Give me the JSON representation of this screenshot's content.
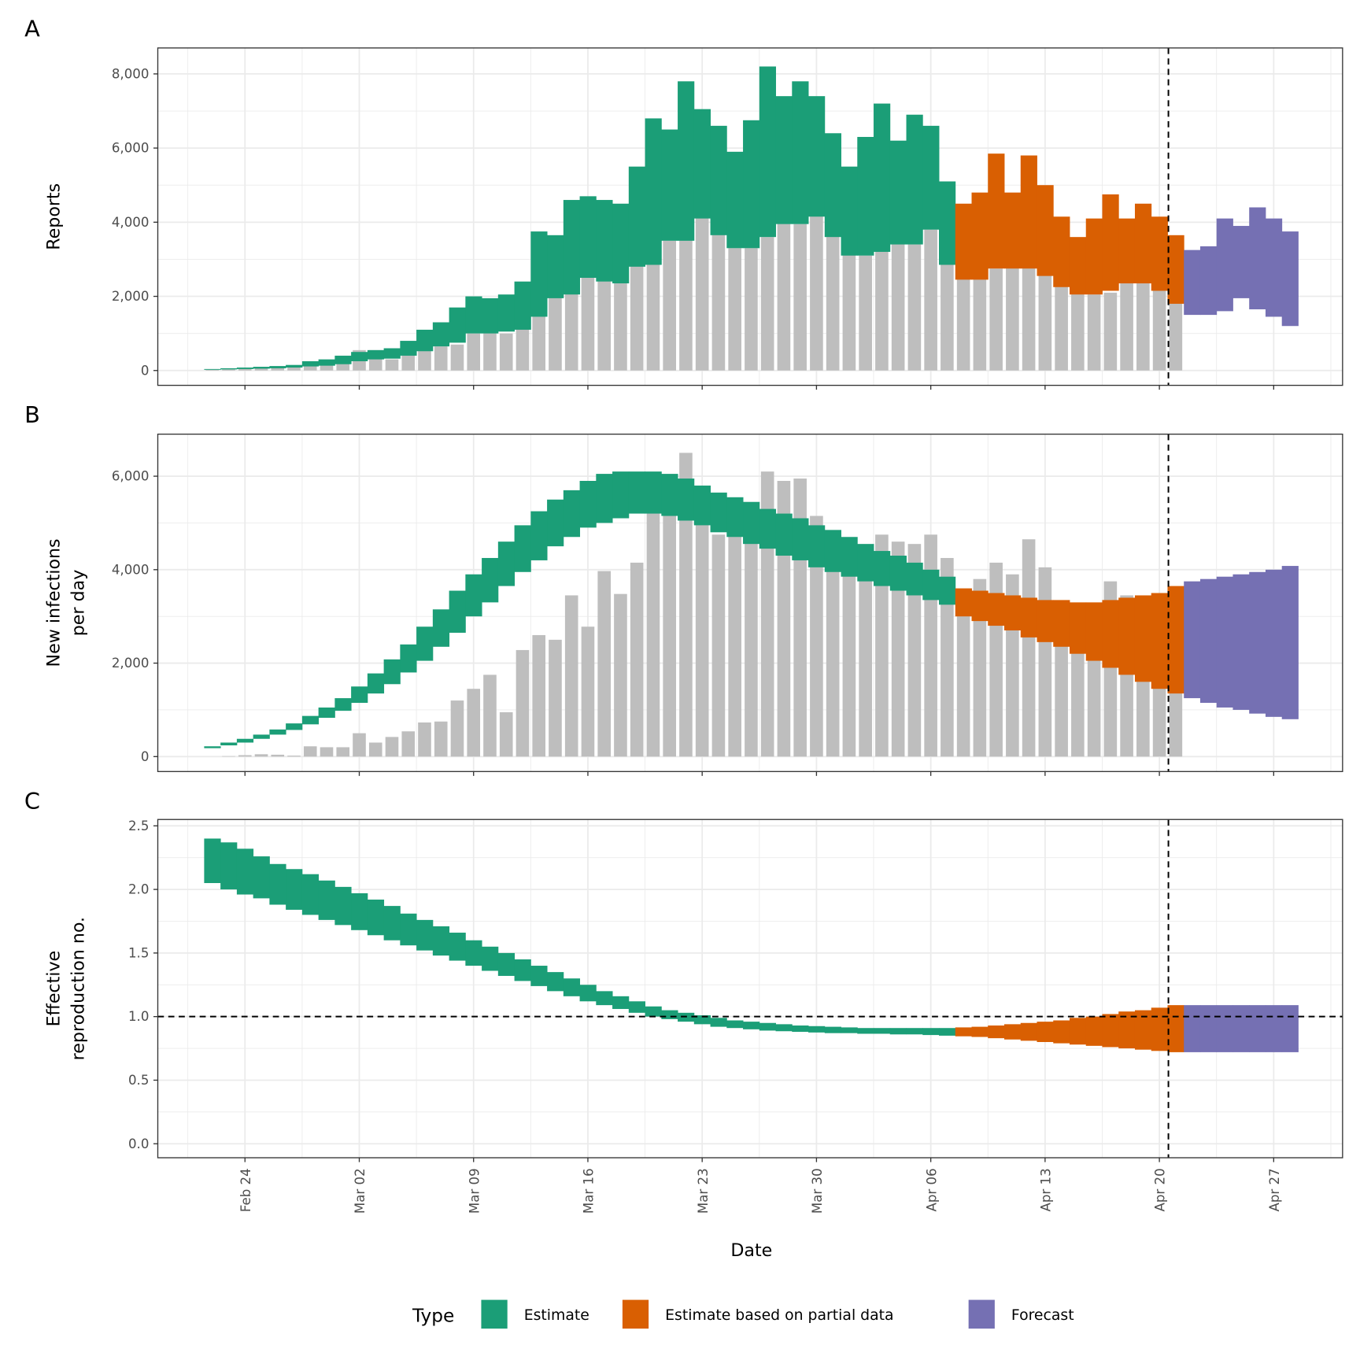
{
  "colors": {
    "Estimate": "#1b9e77",
    "Estimate based on partial data": "#d95f02",
    "Forecast": "#7570b3",
    "reported": "#bebebe",
    "grid": "#ebebeb"
  },
  "x_axis": {
    "label": "Date",
    "ticks": [
      "Feb 24",
      "Mar 02",
      "Mar 09",
      "Mar 16",
      "Mar 23",
      "Mar 30",
      "Apr 06",
      "Apr 13",
      "Apr 20",
      "Apr 27"
    ]
  },
  "legend": {
    "title": "Type",
    "position": "bottom",
    "entries": [
      "Estimate",
      "Estimate based on partial data",
      "Forecast"
    ]
  },
  "chart_data": {
    "type": "bar+ribbon",
    "dates": [
      "Feb 22",
      "Feb 23",
      "Feb 24",
      "Feb 25",
      "Feb 26",
      "Feb 27",
      "Feb 28",
      "Feb 29",
      "Mar 01",
      "Mar 02",
      "Mar 03",
      "Mar 04",
      "Mar 05",
      "Mar 06",
      "Mar 07",
      "Mar 08",
      "Mar 09",
      "Mar 10",
      "Mar 11",
      "Mar 12",
      "Mar 13",
      "Mar 14",
      "Mar 15",
      "Mar 16",
      "Mar 17",
      "Mar 18",
      "Mar 19",
      "Mar 20",
      "Mar 21",
      "Mar 22",
      "Mar 23",
      "Mar 24",
      "Mar 25",
      "Mar 26",
      "Mar 27",
      "Mar 28",
      "Mar 29",
      "Mar 30",
      "Mar 31",
      "Apr 01",
      "Apr 02",
      "Apr 03",
      "Apr 04",
      "Apr 05",
      "Apr 06",
      "Apr 07",
      "Apr 08",
      "Apr 09",
      "Apr 10",
      "Apr 11",
      "Apr 12",
      "Apr 13",
      "Apr 14",
      "Apr 15",
      "Apr 16",
      "Apr 17",
      "Apr 18",
      "Apr 19",
      "Apr 20",
      "Apr 21",
      "Apr 22",
      "Apr 23",
      "Apr 24",
      "Apr 25",
      "Apr 26",
      "Apr 27",
      "Apr 28"
    ],
    "type_ranges": [
      {
        "type": "Estimate",
        "from": "Feb 22",
        "to": "Apr 07"
      },
      {
        "type": "Estimate based on partial data",
        "from": "Apr 08",
        "to": "Apr 21"
      },
      {
        "type": "Forecast",
        "from": "Apr 22",
        "to": "Apr 28"
      }
    ],
    "forecast_vline": "Apr 21",
    "panels": [
      {
        "letter": "A",
        "ylabel": [
          "Reports"
        ],
        "ylim": [
          -400,
          8700
        ],
        "yticks": [
          0,
          2000,
          4000,
          6000,
          8000
        ],
        "ytick_labels": [
          "0",
          "2,000",
          "4,000",
          "6,000",
          "8,000"
        ],
        "reported": [
          20,
          30,
          40,
          60,
          80,
          100,
          130,
          150,
          200,
          550,
          550,
          300,
          450,
          600,
          650,
          700,
          1000,
          1050,
          1000,
          1450,
          1950,
          2050,
          2500,
          2700,
          2450,
          2350,
          2850,
          3800,
          3500,
          4100,
          4500,
          3900,
          3300,
          3300,
          3600,
          4500,
          3950,
          4500,
          4100,
          3650,
          3100,
          3200,
          3900,
          3400,
          3800,
          2900,
          2500,
          2500,
          2750,
          3200,
          2800,
          3100,
          2600,
          2300,
          2050,
          2100,
          2400,
          2500,
          2200,
          1850
        ],
        "lower": [
          20,
          30,
          40,
          50,
          60,
          80,
          110,
          130,
          170,
          250,
          300,
          320,
          400,
          520,
          650,
          750,
          1000,
          1000,
          1050,
          1100,
          1450,
          1950,
          2050,
          2500,
          2400,
          2350,
          2800,
          2850,
          3500,
          3500,
          4100,
          3650,
          3300,
          3300,
          3600,
          3950,
          3950,
          4150,
          3600,
          3100,
          3100,
          3200,
          3400,
          3400,
          3800,
          2850,
          2450,
          2450,
          2750,
          2750,
          2750,
          2550,
          2250,
          2050,
          2050,
          2150,
          2350,
          2350,
          2150,
          1800,
          1500,
          1500,
          1600,
          1950,
          1650,
          1450,
          1200
        ],
        "upper": [
          40,
          60,
          80,
          100,
          120,
          150,
          250,
          300,
          400,
          500,
          550,
          600,
          800,
          1100,
          1300,
          1700,
          2000,
          1950,
          2050,
          2400,
          3750,
          3650,
          4600,
          4700,
          4600,
          4500,
          5500,
          6800,
          6500,
          7800,
          7050,
          6600,
          5900,
          6750,
          8200,
          7400,
          7800,
          7400,
          6400,
          5500,
          6300,
          7200,
          6200,
          6900,
          6600,
          5100,
          4500,
          4800,
          5850,
          4800,
          5800,
          5000,
          4150,
          3600,
          4100,
          4750,
          4100,
          4500,
          4150,
          3650,
          3250,
          3350,
          4100,
          3900,
          4400,
          4100,
          3750
        ]
      },
      {
        "letter": "B",
        "ylabel": [
          "New infections",
          "per day"
        ],
        "ylim": [
          -320,
          6900
        ],
        "yticks": [
          0,
          2000,
          4000,
          6000
        ],
        "ytick_labels": [
          "0",
          "2,000",
          "4,000",
          "6,000"
        ],
        "reported": [
          0,
          10,
          30,
          50,
          40,
          20,
          220,
          200,
          200,
          500,
          300,
          420,
          540,
          730,
          750,
          1200,
          1450,
          1750,
          950,
          2280,
          2600,
          2500,
          3450,
          2780,
          3970,
          3480,
          4150,
          5550,
          5900,
          6500,
          5600,
          4750,
          4850,
          4750,
          6100,
          5900,
          5950,
          5150,
          4100,
          3900,
          4250,
          4750,
          4600,
          4550,
          4750,
          4250,
          3400,
          3800,
          4150,
          3900,
          4650,
          4050,
          3300,
          3200,
          2900,
          3750,
          3450,
          3400,
          3450,
          2000
        ],
        "lower": [
          180,
          240,
          300,
          380,
          470,
          570,
          690,
          830,
          980,
          1150,
          1350,
          1550,
          1800,
          2050,
          2350,
          2650,
          3000,
          3300,
          3650,
          3950,
          4200,
          4500,
          4700,
          4900,
          5000,
          5100,
          5200,
          5200,
          5150,
          5050,
          4950,
          4800,
          4700,
          4550,
          4450,
          4300,
          4200,
          4050,
          3950,
          3850,
          3750,
          3650,
          3550,
          3450,
          3350,
          3250,
          3000,
          2900,
          2800,
          2700,
          2550,
          2450,
          2350,
          2200,
          2050,
          1900,
          1750,
          1600,
          1450,
          1350,
          1250,
          1150,
          1050,
          1000,
          920,
          850,
          800
        ],
        "upper": [
          220,
          300,
          380,
          470,
          580,
          710,
          870,
          1050,
          1250,
          1500,
          1780,
          2080,
          2400,
          2780,
          3150,
          3550,
          3900,
          4250,
          4600,
          4950,
          5250,
          5500,
          5700,
          5900,
          6050,
          6100,
          6100,
          6100,
          6050,
          5950,
          5800,
          5650,
          5550,
          5450,
          5300,
          5200,
          5100,
          4950,
          4850,
          4700,
          4550,
          4400,
          4300,
          4150,
          4000,
          3850,
          3600,
          3550,
          3500,
          3450,
          3400,
          3350,
          3350,
          3300,
          3300,
          3350,
          3400,
          3450,
          3500,
          3650,
          3750,
          3800,
          3850,
          3900,
          3950,
          4000,
          4080
        ]
      },
      {
        "letter": "C",
        "ylabel": [
          "Effective",
          "reproduction no."
        ],
        "ylim": [
          -0.11,
          2.55
        ],
        "yticks": [
          0,
          0.5,
          1.0,
          1.5,
          2.0,
          2.5
        ],
        "ytick_labels": [
          "0.0",
          "0.5",
          "1.0",
          "1.5",
          "2.0",
          "2.5"
        ],
        "hline": 1.0,
        "lower": [
          2.05,
          2.0,
          1.96,
          1.93,
          1.88,
          1.84,
          1.8,
          1.76,
          1.72,
          1.68,
          1.64,
          1.6,
          1.56,
          1.52,
          1.48,
          1.44,
          1.4,
          1.36,
          1.32,
          1.28,
          1.24,
          1.2,
          1.16,
          1.12,
          1.09,
          1.06,
          1.03,
          1.0,
          0.98,
          0.96,
          0.94,
          0.92,
          0.91,
          0.9,
          0.89,
          0.885,
          0.88,
          0.875,
          0.87,
          0.87,
          0.865,
          0.865,
          0.86,
          0.86,
          0.855,
          0.85,
          0.845,
          0.84,
          0.83,
          0.82,
          0.81,
          0.8,
          0.79,
          0.78,
          0.77,
          0.76,
          0.75,
          0.74,
          0.73,
          0.72,
          0.72,
          0.72,
          0.72,
          0.72,
          0.72,
          0.72,
          0.72
        ],
        "upper": [
          2.4,
          2.37,
          2.32,
          2.26,
          2.2,
          2.16,
          2.12,
          2.07,
          2.02,
          1.97,
          1.92,
          1.87,
          1.81,
          1.76,
          1.71,
          1.66,
          1.6,
          1.55,
          1.5,
          1.45,
          1.4,
          1.35,
          1.3,
          1.25,
          1.2,
          1.16,
          1.12,
          1.08,
          1.05,
          1.03,
          1.01,
          0.99,
          0.97,
          0.96,
          0.95,
          0.94,
          0.93,
          0.925,
          0.92,
          0.915,
          0.91,
          0.91,
          0.91,
          0.91,
          0.91,
          0.91,
          0.915,
          0.92,
          0.93,
          0.94,
          0.95,
          0.96,
          0.97,
          0.99,
          1.0,
          1.02,
          1.04,
          1.05,
          1.07,
          1.09,
          1.09,
          1.09,
          1.09,
          1.09,
          1.09,
          1.09,
          1.09
        ]
      }
    ]
  }
}
